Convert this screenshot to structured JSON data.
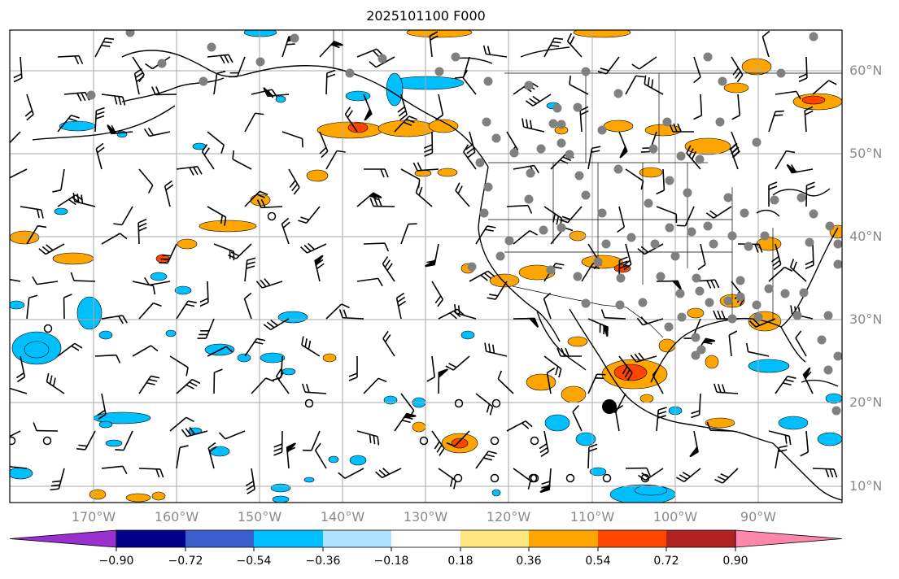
{
  "title": "2025101100 F000",
  "lat_labels": [
    "60°N",
    "50°N",
    "40°N",
    "30°N",
    "20°N",
    "10°N"
  ],
  "lon_labels": [
    "170°W",
    "160°W",
    "150°W",
    "140°W",
    "130°W",
    "120°W",
    "110°W",
    "100°W",
    "90°W"
  ],
  "colorbar": {
    "ticks": [
      "−0.90",
      "−0.72",
      "−0.54",
      "−0.36",
      "−0.18",
      "0.18",
      "0.36",
      "0.54",
      "0.72",
      "0.90"
    ],
    "colors": [
      "#9b30d0",
      "#00008b",
      "#3a5fcd",
      "#00bfff",
      "#aee2ff",
      "#ffffff",
      "#ffe680",
      "#ffa500",
      "#ff4500",
      "#b22222",
      "#ff88aa"
    ]
  },
  "colors": {
    "orange": "#ffa500",
    "red_orange": "#ff4500",
    "cyan": "#00bfff",
    "light_cyan": "#aee2ff",
    "grid": "#aaaaaa",
    "station_dot": "#808080"
  }
}
